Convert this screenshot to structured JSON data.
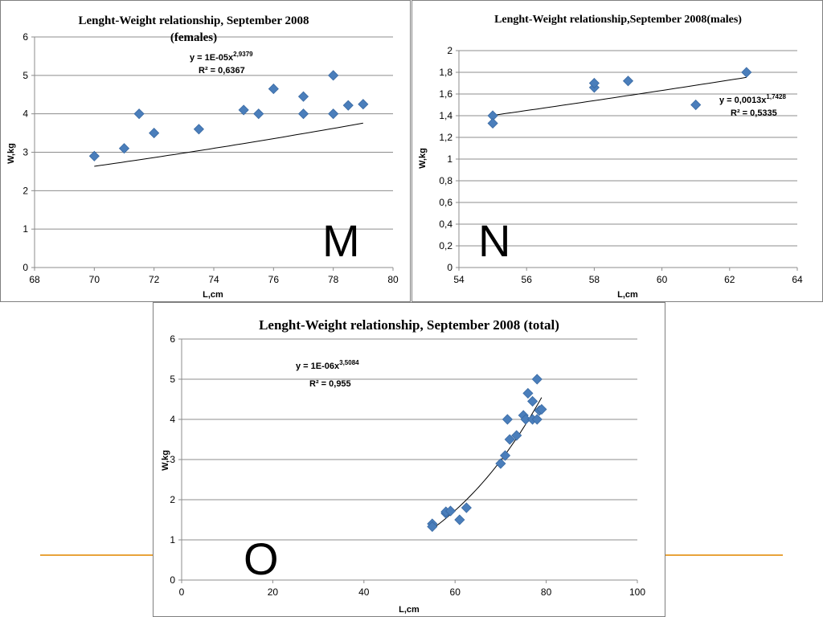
{
  "chart_data": [
    {
      "type": "scatter",
      "panel_label": "M",
      "title": [
        "Lenght-Weight relationship, September 2008",
        "(females)"
      ],
      "xlabel": "L,cm",
      "ylabel": "W,kg",
      "xlim": [
        68,
        80
      ],
      "ylim": [
        0,
        6
      ],
      "xticks": [
        68,
        70,
        72,
        74,
        76,
        78,
        80
      ],
      "yticks": [
        0,
        1,
        2,
        3,
        4,
        5,
        6
      ],
      "grid": true,
      "marker_color": "#4a7ebb",
      "trendline": {
        "type": "power",
        "a": 1e-05,
        "b": 2.9379
      },
      "equation": {
        "prefix": "y = 1E-05x",
        "exp": "2,9379",
        "r2": "R² = 0,6367"
      },
      "x": [
        70,
        71,
        71.5,
        72,
        73.5,
        75,
        75.5,
        76,
        77,
        77,
        78,
        78,
        78.5,
        79
      ],
      "y": [
        2.9,
        3.1,
        4.0,
        3.5,
        3.6,
        4.1,
        4.0,
        4.65,
        4.0,
        4.45,
        5.0,
        4.0,
        4.22,
        4.25
      ]
    },
    {
      "type": "scatter",
      "panel_label": "N",
      "title": [
        "Lenght-Weight relationship,September 2008(males)"
      ],
      "xlabel": "L,cm",
      "ylabel": "W,kg",
      "xlim": [
        54,
        64
      ],
      "ylim": [
        0,
        2
      ],
      "xticks": [
        54,
        56,
        58,
        60,
        62,
        64
      ],
      "yticks": [
        0,
        0.2,
        0.4,
        0.6,
        0.8,
        1.0,
        1.2,
        1.4,
        1.6,
        1.8,
        2.0
      ],
      "ytick_labels": [
        "0",
        "0,2",
        "0,4",
        "0,6",
        "0,8",
        "1",
        "1,2",
        "1,4",
        "1,6",
        "1,8",
        "2"
      ],
      "grid": true,
      "marker_color": "#4a7ebb",
      "trendline": {
        "type": "power",
        "a": 0.0013,
        "b": 1.7428
      },
      "equation": {
        "prefix": "y = 0,0013x",
        "exp": "1,7428",
        "r2": "R² = 0,5335"
      },
      "x": [
        55,
        55,
        58,
        58,
        59,
        61,
        62.5
      ],
      "y": [
        1.4,
        1.33,
        1.66,
        1.7,
        1.72,
        1.5,
        1.8
      ]
    },
    {
      "type": "scatter",
      "panel_label": "O",
      "title": [
        "Lenght-Weight relationship, September 2008 (total)"
      ],
      "xlabel": "L,cm",
      "ylabel": "W,kg",
      "xlim": [
        0,
        100
      ],
      "ylim": [
        0,
        6
      ],
      "xticks": [
        0,
        20,
        40,
        60,
        80,
        100
      ],
      "yticks": [
        0,
        1,
        2,
        3,
        4,
        5,
        6
      ],
      "grid": true,
      "marker_color": "#4a7ebb",
      "trendline": {
        "type": "power",
        "a": 1e-06,
        "b": 3.5084
      },
      "equation": {
        "prefix": "y = 1E-06x",
        "exp": "3,5084",
        "r2": "R² = 0,955"
      },
      "x": [
        55,
        55,
        58,
        58,
        59,
        61,
        62.5,
        70,
        71,
        71.5,
        72,
        73.5,
        75,
        75.5,
        76,
        77,
        77,
        78,
        78,
        78.5,
        79
      ],
      "y": [
        1.4,
        1.33,
        1.66,
        1.7,
        1.72,
        1.5,
        1.8,
        2.9,
        3.1,
        4.0,
        3.5,
        3.6,
        4.1,
        4.0,
        4.65,
        4.0,
        4.45,
        5.0,
        4.0,
        4.22,
        4.25
      ]
    }
  ]
}
